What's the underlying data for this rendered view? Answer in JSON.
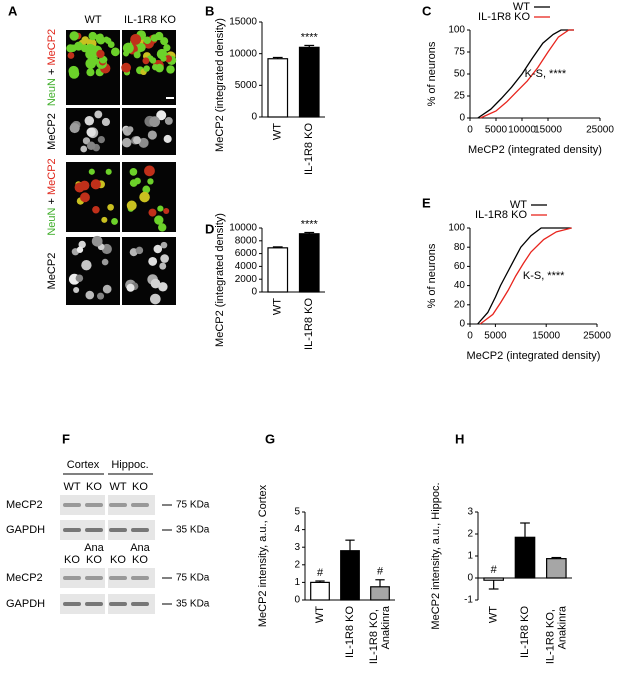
{
  "figure": {
    "panel_A": {
      "label": "A",
      "columns": [
        "WT",
        "IL-1R8 KO"
      ],
      "rows": [
        [
          "NeuN",
          "+",
          "MeCP2"
        ],
        [
          "MeCP2"
        ],
        [
          "NeuN",
          "+",
          "MeCP2"
        ],
        [
          "MeCP2"
        ]
      ]
    },
    "panel_F": {
      "label": "F",
      "groups": [
        "Cortex",
        "Hippoc."
      ],
      "top_lanes": [
        "WT",
        "KO",
        "WT",
        "KO"
      ],
      "bottom_lanes": [
        [
          "KO"
        ],
        [
          "Ana",
          "KO"
        ],
        [
          "KO"
        ],
        [
          "Ana",
          "KO"
        ]
      ],
      "rows": [
        "MeCP2",
        "GAPDH"
      ],
      "markers": [
        "75 KDa",
        "35 KDa"
      ]
    }
  },
  "chart_data": [
    {
      "type": "bar",
      "panel": "B",
      "y_label": "MeCP2 (integrated density)",
      "categories": [
        "WT",
        "IL-1R8 KO"
      ],
      "values": [
        9200,
        11000
      ],
      "errors": [
        200,
        300
      ],
      "colors": [
        "#ffffff",
        "#000000"
      ],
      "ylim": [
        0,
        15000
      ],
      "yticks": [
        0,
        5000,
        10000,
        15000
      ],
      "annotations": [
        {
          "category": "IL-1R8 KO",
          "text": "****"
        }
      ]
    },
    {
      "type": "line",
      "panel": "C",
      "x_label": "MeCP2 (integrated density)",
      "y_label": "% of neurons",
      "series": [
        {
          "name": "WT",
          "color": "#000000",
          "x": [
            1500,
            4000,
            6000,
            8000,
            10000,
            12000,
            14000,
            16000,
            17500,
            20000
          ],
          "values": [
            0,
            10,
            22,
            35,
            50,
            68,
            85,
            95,
            100,
            100
          ]
        },
        {
          "name": "IL-1R8 KO",
          "color": "#e8251e",
          "x": [
            2000,
            5000,
            7000,
            9000,
            11000,
            13000,
            15000,
            17000,
            19000,
            20000
          ],
          "values": [
            0,
            8,
            18,
            30,
            42,
            57,
            75,
            92,
            100,
            100
          ]
        }
      ],
      "xlim": [
        0,
        25000
      ],
      "xticks": [
        0,
        5000,
        10000,
        15000,
        25000
      ],
      "ylim": [
        0,
        100
      ],
      "yticks": [
        0,
        25,
        50,
        75,
        100
      ],
      "legend": "upper right",
      "annotation": "K-S, ****"
    },
    {
      "type": "bar",
      "panel": "D",
      "y_label": "MeCP2 (integrated density)",
      "categories": [
        "WT",
        "IL-1R8 KO"
      ],
      "values": [
        6900,
        9100
      ],
      "errors": [
        150,
        200
      ],
      "colors": [
        "#ffffff",
        "#000000"
      ],
      "ylim": [
        0,
        10000
      ],
      "yticks": [
        0,
        2000,
        4000,
        6000,
        8000,
        10000
      ],
      "annotations": [
        {
          "category": "IL-1R8 KO",
          "text": "****"
        }
      ]
    },
    {
      "type": "line",
      "panel": "E",
      "x_label": "MeCP2 (integrated density)",
      "y_label": "% of neurons",
      "series": [
        {
          "name": "WT",
          "color": "#000000",
          "x": [
            1500,
            3500,
            5000,
            6000,
            7000,
            8500,
            10000,
            12000,
            14000,
            20000
          ],
          "values": [
            0,
            12,
            28,
            40,
            50,
            65,
            80,
            92,
            100,
            100
          ]
        },
        {
          "name": "IL-1R8 KO",
          "color": "#e8251e",
          "x": [
            2000,
            4500,
            6000,
            7500,
            9000,
            10500,
            12000,
            14500,
            17000,
            20000
          ],
          "values": [
            0,
            10,
            22,
            35,
            50,
            63,
            75,
            88,
            96,
            100
          ]
        }
      ],
      "xlim": [
        0,
        25000
      ],
      "xticks": [
        0,
        5000,
        15000,
        25000
      ],
      "ylim": [
        0,
        100
      ],
      "yticks": [
        0,
        20,
        40,
        60,
        80,
        100
      ],
      "legend": "upper right",
      "annotation": "K-S, ****"
    },
    {
      "type": "bar",
      "panel": "G",
      "y_label": "MeCP2 intensity, a.u., Cortex",
      "categories": [
        "WT",
        "IL-1R8 KO",
        "IL-1R8 KO, Anakinra"
      ],
      "values": [
        1.0,
        2.8,
        0.75
      ],
      "errors": [
        0.08,
        0.6,
        0.4
      ],
      "colors": [
        "#ffffff",
        "#000000",
        "#a6a6a6"
      ],
      "ylim": [
        0,
        5
      ],
      "yticks": [
        0,
        1,
        2,
        3,
        4,
        5
      ],
      "annotations": [
        {
          "category": "WT",
          "text": "#"
        },
        {
          "category": "IL-1R8 KO, Anakinra",
          "text": "#"
        }
      ]
    },
    {
      "type": "bar",
      "panel": "H",
      "y_label": "MeCP2 intensity, a.u., Hippoc.",
      "categories": [
        "WT",
        "IL-1R8 KO",
        "IL-1R8 KO, Anakinra"
      ],
      "values": [
        -0.1,
        1.85,
        0.88
      ],
      "errors": [
        0.4,
        0.65,
        0.05
      ],
      "colors": [
        "#ffffff",
        "#000000",
        "#a6a6a6"
      ],
      "ylim": [
        -1,
        3
      ],
      "yticks": [
        -1,
        0,
        1,
        2,
        3
      ],
      "annotations": [
        {
          "category": "WT",
          "text": "#"
        }
      ]
    }
  ]
}
